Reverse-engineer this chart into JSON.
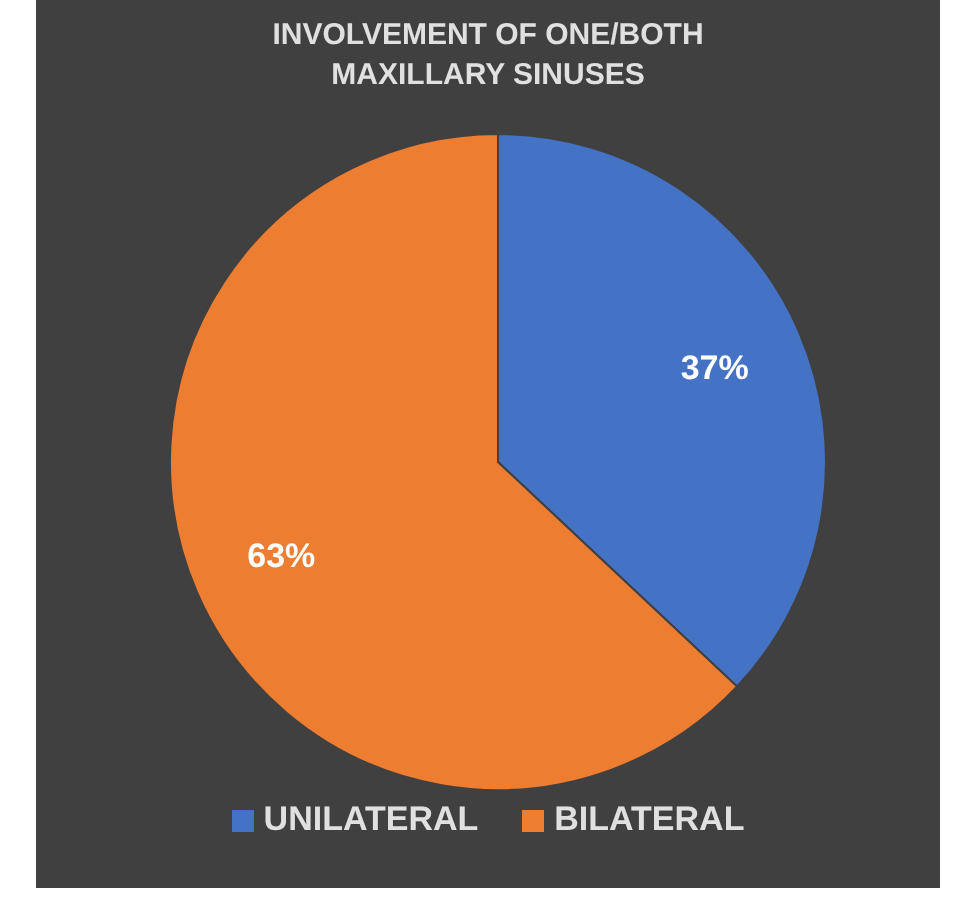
{
  "chart_data": {
    "type": "pie",
    "title": "INVOLVEMENT OF ONE/BOTH MAXILLARY SINUSES",
    "categories": [
      "UNILATERAL",
      "BILATERAL"
    ],
    "values": [
      37,
      63
    ],
    "colors": [
      "#4472c4",
      "#ed7d31"
    ],
    "value_labels": [
      "37%",
      "63%"
    ],
    "legend": "bottom"
  }
}
